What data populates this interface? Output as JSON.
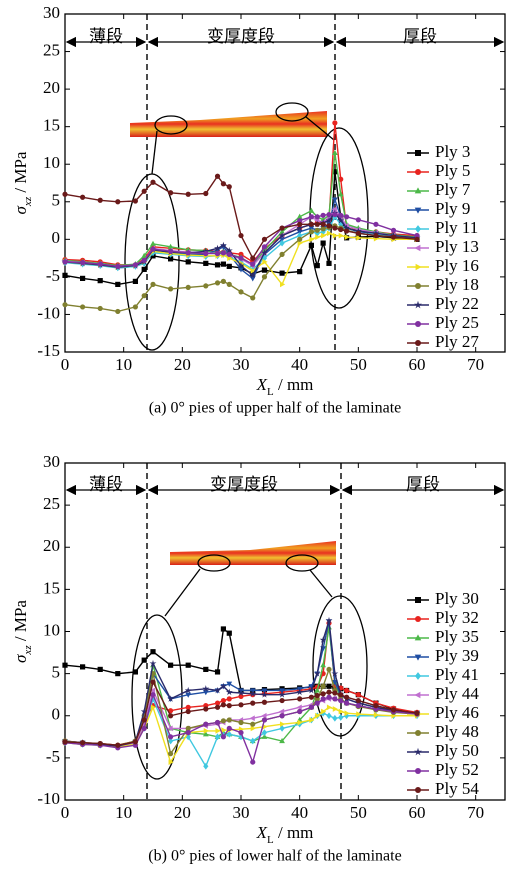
{
  "chart_data": [
    {
      "type": "line",
      "caption": "(a) 0° pies of upper half of the laminate",
      "region_labels": [
        "薄段",
        "变厚度段",
        "厚段"
      ],
      "x_label": {
        "symbol": "X",
        "subscript": "L",
        "unit": " / mm"
      },
      "y_label": {
        "symbol": "σ",
        "subscript": "xz",
        "unit": " / MPa"
      },
      "xlim": [
        0,
        75
      ],
      "ylim": [
        -15,
        30
      ],
      "xticks": [
        0,
        10,
        20,
        30,
        40,
        50,
        60,
        70
      ],
      "yticks": [
        -15,
        -10,
        -5,
        0,
        5,
        10,
        15,
        20,
        25,
        30
      ],
      "legend": "right",
      "x": [
        0,
        3,
        6,
        9,
        12,
        13.5,
        15,
        18,
        21,
        24,
        26,
        27,
        28,
        30,
        32,
        34,
        37,
        40,
        42,
        43,
        44,
        45,
        46,
        47,
        48,
        50,
        53,
        56,
        60
      ],
      "series": [
        {
          "name": "Ply 3",
          "color": "#000000",
          "marker": "square",
          "values": [
            -4.8,
            -5.2,
            -5.5,
            -6,
            -5.6,
            -4,
            -2.2,
            -2.6,
            -3,
            -3.2,
            -3.4,
            -3.3,
            -3.6,
            -3.8,
            -4.6,
            -4.1,
            -4.5,
            -4.3,
            -0.8,
            -3.5,
            -0.5,
            -3.2,
            9,
            3,
            0.2,
            0.3,
            0.4,
            0.2,
            0
          ]
        },
        {
          "name": "Ply 5",
          "color": "#e8231f",
          "marker": "circle",
          "values": [
            -2.7,
            -2.8,
            -3,
            -3.4,
            -3.4,
            -2.6,
            -1,
            -1.2,
            -1.4,
            -1.5,
            -1.6,
            -1.7,
            -1.8,
            -2,
            -3,
            -1.2,
            0.5,
            1.5,
            2,
            2.2,
            2.2,
            2.6,
            15.5,
            8,
            1.5,
            1.2,
            1,
            0.7,
            0.5
          ]
        },
        {
          "name": "Ply 7",
          "color": "#4cb848",
          "marker": "triangle",
          "values": [
            -2.8,
            -3,
            -3.2,
            -3.5,
            -3.3,
            -2.2,
            -0.6,
            -1,
            -1.4,
            -1.5,
            -1.8,
            -1.6,
            -2,
            -2.4,
            -3.4,
            -1.5,
            1,
            3,
            3.8,
            3,
            2.6,
            3.2,
            11.5,
            6,
            2,
            1.5,
            1,
            0.6,
            0.3
          ]
        },
        {
          "name": "Ply 9",
          "color": "#1f4ea3",
          "marker": "triangle-down",
          "values": [
            -3,
            -3.2,
            -3.4,
            -3.8,
            -3.6,
            -3,
            -1.5,
            -1.8,
            -2,
            -2,
            -1.4,
            -1,
            -2,
            -4,
            -5.2,
            -2,
            0,
            1,
            1.5,
            1.2,
            1.5,
            2,
            5.3,
            3,
            1.5,
            1,
            0.8,
            0.5,
            0.2
          ]
        },
        {
          "name": "Ply 11",
          "color": "#40c8e0",
          "marker": "diamond",
          "values": [
            -3.1,
            -3.3,
            -3.5,
            -3.8,
            -3.6,
            -3.2,
            -1.8,
            -2,
            -2.2,
            -2.3,
            -2.2,
            -2,
            -2.4,
            -3,
            -4,
            -2.5,
            -0.5,
            0.5,
            1,
            0.8,
            1,
            1.5,
            3,
            2,
            1.2,
            0.8,
            0.6,
            0.4,
            0.2
          ]
        },
        {
          "name": "Ply 13",
          "color": "#c070d0",
          "marker": "triangle-left",
          "values": [
            -2.9,
            -3.1,
            -3.3,
            -3.6,
            -3.4,
            -2.8,
            -1.2,
            -1.5,
            -1.7,
            -1.8,
            -1.9,
            -1.8,
            -2.1,
            -2.6,
            -3.5,
            -1.8,
            0.5,
            2,
            3,
            2.5,
            2.3,
            2.8,
            4,
            3,
            1.8,
            1.3,
            0.9,
            0.5,
            0.2
          ]
        },
        {
          "name": "Ply 16",
          "color": "#f0e020",
          "marker": "triangle-right",
          "values": [
            -3,
            -3.2,
            -3.4,
            -3.7,
            -3.5,
            -3,
            -1.6,
            -1.9,
            -2.1,
            -2.2,
            -2.2,
            -2.1,
            -2.5,
            -3.2,
            -4.2,
            -3,
            -6,
            -0.5,
            0,
            0.3,
            0.5,
            0.8,
            0.5,
            0.5,
            0.3,
            0.2,
            0.1,
            0,
            0
          ]
        },
        {
          "name": "Ply 18",
          "color": "#808030",
          "marker": "circle",
          "values": [
            -8.7,
            -9,
            -9.2,
            -9.6,
            -9,
            -7.5,
            -6,
            -6.6,
            -6.4,
            -6.2,
            -5.8,
            -5.6,
            -6,
            -7,
            -7.8,
            -5,
            -2,
            0,
            1,
            1.2,
            1.4,
            1.6,
            1.8,
            1.5,
            1.2,
            0.8,
            0.5,
            0.3,
            0.1
          ]
        },
        {
          "name": "Ply 22",
          "color": "#2a2a6a",
          "marker": "star",
          "values": [
            -3,
            -3.2,
            -3.4,
            -3.7,
            -3.5,
            -3,
            -1.4,
            -1.7,
            -1.8,
            -1.6,
            -1.2,
            -0.8,
            -1.5,
            -3.5,
            -4.8,
            -1.8,
            0.5,
            1.5,
            2,
            2,
            2.2,
            2.5,
            3.5,
            2.5,
            1.5,
            1.1,
            0.8,
            0.5,
            0.2
          ]
        },
        {
          "name": "Ply 25",
          "color": "#8030a0",
          "marker": "circle",
          "values": [
            -3,
            -3.1,
            -3.3,
            -3.6,
            -3.4,
            -2.8,
            -1.3,
            -1.6,
            -1.8,
            -1.9,
            -1.9,
            -1.8,
            -2,
            -2.5,
            -3.3,
            -1,
            1.5,
            2.5,
            3,
            3,
            3.2,
            3.3,
            3.3,
            3.2,
            3,
            2.6,
            2,
            1.2,
            0.5
          ]
        },
        {
          "name": "Ply 27",
          "color": "#6a1a1a",
          "marker": "circle",
          "values": [
            6,
            5.6,
            5.2,
            5,
            5.1,
            6.4,
            7.6,
            6.2,
            6,
            6.1,
            8.4,
            7.4,
            7,
            0.5,
            -2.5,
            0,
            1.5,
            2,
            2,
            2,
            2,
            1.8,
            1.5,
            1.3,
            1.1,
            0.8,
            0.5,
            0.3,
            0
          ]
        }
      ]
    },
    {
      "type": "line",
      "caption": "(b) 0° pies of lower half of the laminate",
      "region_labels": [
        "薄段",
        "变厚度段",
        "厚段"
      ],
      "x_label": {
        "symbol": "X",
        "subscript": "L",
        "unit": " / mm"
      },
      "y_label": {
        "symbol": "σ",
        "subscript": "xz",
        "unit": " / MPa"
      },
      "xlim": [
        0,
        75
      ],
      "ylim": [
        -10,
        30
      ],
      "xticks": [
        0,
        10,
        20,
        30,
        40,
        50,
        60,
        70
      ],
      "yticks": [
        -10,
        -5,
        0,
        5,
        10,
        15,
        20,
        25,
        30
      ],
      "legend": "right",
      "x": [
        0,
        3,
        6,
        9,
        12,
        13.5,
        15,
        18,
        21,
        24,
        26,
        27,
        28,
        30,
        32,
        34,
        37,
        40,
        42,
        43,
        44,
        45,
        46,
        47,
        48,
        50,
        53,
        56,
        60
      ],
      "series": [
        {
          "name": "Ply 30",
          "color": "#000000",
          "marker": "square",
          "values": [
            6,
            5.8,
            5.5,
            5,
            5.2,
            6.6,
            7.6,
            6,
            6,
            5.5,
            5.2,
            10.3,
            9.8,
            3,
            3,
            3.1,
            3.2,
            3.3,
            3.4,
            3.5,
            3.5,
            3.5,
            3.4,
            3.2,
            3,
            2.5,
            1.5,
            0.8,
            0.3
          ]
        },
        {
          "name": "Ply 32",
          "color": "#e8231f",
          "marker": "circle",
          "values": [
            -3,
            -3.2,
            -3.3,
            -3.5,
            -3,
            -0.5,
            1.2,
            0.6,
            1,
            1.2,
            1.5,
            1.8,
            2,
            2.3,
            2.5,
            2.6,
            2.8,
            3,
            3.2,
            3.4,
            5,
            11,
            3.6,
            3.3,
            3,
            2.5,
            1.5,
            0.9,
            0.4
          ]
        },
        {
          "name": "Ply 35",
          "color": "#4cb848",
          "marker": "triangle",
          "values": [
            -3.1,
            -3.3,
            -3.4,
            -3.6,
            -3.2,
            -1,
            6,
            -1.5,
            -2,
            -2.2,
            -2.5,
            -2,
            -2.2,
            -2.5,
            -3,
            -2.5,
            -3,
            -0.5,
            1,
            3,
            6,
            10.5,
            4,
            2,
            1.5,
            1.2,
            0.8,
            0.5,
            0.2
          ]
        },
        {
          "name": "Ply 39",
          "color": "#1f4ea3",
          "marker": "triangle-down",
          "values": [
            -3,
            -3.2,
            -3.4,
            -3.6,
            -3.1,
            -0.5,
            5,
            2,
            2.5,
            2.8,
            3,
            3.5,
            3.8,
            3,
            3,
            3,
            3,
            3.2,
            3.5,
            5,
            8,
            11.2,
            4,
            2.5,
            2,
            1.5,
            1,
            0.6,
            0.3
          ]
        },
        {
          "name": "Ply 41",
          "color": "#40c8e0",
          "marker": "diamond",
          "values": [
            -3.2,
            -3.4,
            -3.5,
            -3.7,
            -3.4,
            -1.5,
            2,
            -3,
            -2.5,
            -6,
            -2.5,
            -2.3,
            -2.2,
            -2.5,
            -3,
            -2,
            -1.5,
            -1,
            -0.5,
            0,
            0.3,
            0,
            -0.3,
            -0.2,
            0,
            0,
            0,
            0,
            0
          ]
        },
        {
          "name": "Ply 44",
          "color": "#c070d0",
          "marker": "triangle-left",
          "values": [
            -3.1,
            -3.3,
            -3.4,
            -3.6,
            -3.2,
            -1,
            3,
            -1.5,
            -1.5,
            -1.2,
            -1,
            -0.8,
            -0.5,
            -0.5,
            -0.3,
            0,
            0.5,
            1,
            1.3,
            1.5,
            1.8,
            2,
            2,
            1.8,
            1.5,
            1.2,
            0.8,
            0.5,
            0.2
          ]
        },
        {
          "name": "Ply 46",
          "color": "#f0e020",
          "marker": "triangle-right",
          "values": [
            -3.2,
            -3.4,
            -3.5,
            -3.7,
            -3.4,
            -1.5,
            1,
            -5.5,
            -2,
            -1.8,
            -1.8,
            -1.7,
            -1.7,
            -1.6,
            -1.5,
            -1.3,
            -1,
            -0.8,
            -0.5,
            0,
            0.5,
            1,
            0.8,
            0.5,
            0.3,
            0.2,
            0.1,
            0,
            0
          ]
        },
        {
          "name": "Ply 48",
          "color": "#808030",
          "marker": "circle",
          "values": [
            -3,
            -3.2,
            -3.3,
            -3.5,
            -3,
            0,
            5,
            -4.5,
            -1.5,
            -1,
            -0.8,
            -0.6,
            -0.5,
            -0.8,
            -1,
            -0.5,
            0,
            0.5,
            1,
            2,
            3.5,
            5.5,
            3,
            2,
            1.5,
            1.1,
            0.7,
            0.4,
            0.2
          ]
        },
        {
          "name": "Ply 50",
          "color": "#2a2a6a",
          "marker": "star",
          "values": [
            -3.1,
            -3.2,
            -3.4,
            -3.6,
            -3.1,
            0.5,
            6.2,
            2,
            3,
            3.2,
            3,
            3.5,
            2.8,
            2.7,
            2.6,
            2.5,
            2.5,
            2.8,
            3,
            5,
            9,
            11.3,
            5,
            2.5,
            2,
            1.5,
            1,
            0.6,
            0.3
          ]
        },
        {
          "name": "Ply 52",
          "color": "#8030a0",
          "marker": "circle",
          "values": [
            -3.2,
            -3.4,
            -3.5,
            -3.8,
            -3.5,
            -1.5,
            2.5,
            -2.5,
            -2,
            -1,
            -0.8,
            -2.5,
            -1.5,
            -2,
            -5.5,
            -0.5,
            0,
            0.5,
            1,
            1.5,
            2,
            2.2,
            2,
            1.8,
            1.5,
            1.2,
            0.8,
            0.5,
            0.2
          ]
        },
        {
          "name": "Ply 54",
          "color": "#6a1a1a",
          "marker": "circle",
          "values": [
            -3.1,
            -3.2,
            -3.3,
            -3.5,
            -3.1,
            -0.5,
            4,
            0,
            0.5,
            0.8,
            1,
            1.3,
            1.2,
            1.3,
            1.5,
            1.6,
            1.8,
            2,
            2.2,
            2.4,
            2.6,
            2.8,
            2.7,
            2.5,
            2.2,
            1.8,
            1.2,
            0.7,
            0.3
          ]
        }
      ]
    }
  ]
}
